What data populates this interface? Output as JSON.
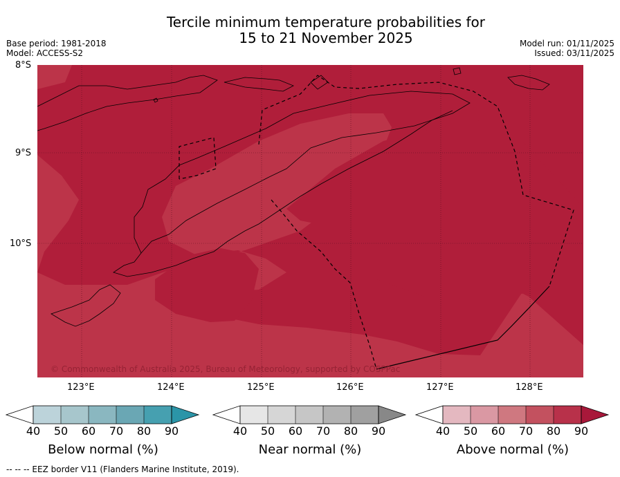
{
  "title": {
    "line1": "Tercile minimum temperature probabilities for",
    "line2": "15 to 21 November 2025"
  },
  "meta": {
    "base_period": "Base period: 1981-2018",
    "model": "Model: ACCESS-S2",
    "model_run": "Model run: 01/11/2025",
    "issued": "Issued: 03/11/2025"
  },
  "map": {
    "lat_labels": [
      "8°S",
      "9°S",
      "10°S"
    ],
    "lon_labels": [
      "123°E",
      "124°E",
      "125°E",
      "126°E",
      "127°E",
      "128°E"
    ],
    "copyright": "© Commonwealth of Australia 2025, Bureau of Meteorology, supported by COSPPac",
    "shading": {
      "dominant_category": "Above normal",
      "probability_classes_present": [
        "80-90",
        "90+"
      ]
    }
  },
  "colorbars": [
    {
      "label": "Below normal (%)",
      "ticks": [
        "40",
        "50",
        "60",
        "70",
        "80",
        "90"
      ],
      "colors": [
        "#ffffff",
        "#bcd3da",
        "#a7c6cc",
        "#8ab7c0",
        "#6aa7b4",
        "#46a0b0",
        "#2b95a8"
      ]
    },
    {
      "label": "Near normal (%)",
      "ticks": [
        "40",
        "50",
        "60",
        "70",
        "80",
        "90"
      ],
      "colors": [
        "#ffffff",
        "#e6e6e6",
        "#d6d6d6",
        "#c6c6c6",
        "#b2b2b2",
        "#a0a0a0",
        "#888888"
      ]
    },
    {
      "label": "Above normal (%)",
      "ticks": [
        "40",
        "50",
        "60",
        "70",
        "80",
        "90"
      ],
      "colors": [
        "#ffffff",
        "#e4b8c0",
        "#da98a3",
        "#cf7880",
        "#c3515f",
        "#b8314a",
        "#a8183a"
      ]
    }
  ],
  "footer": {
    "text": "--  --  -- EEZ border V11 (Flanders Marine Institute, 2019)."
  }
}
